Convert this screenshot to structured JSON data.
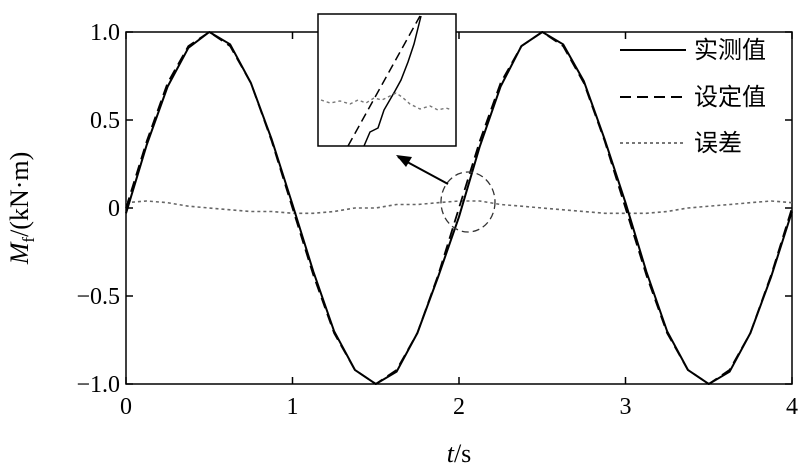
{
  "chart_data": {
    "type": "line",
    "xlabel_italic": "t",
    "xlabel_unit": "/s",
    "ylabel_italic": "M",
    "ylabel_subscript": "f",
    "ylabel_unit": "/(kN·m)",
    "xlim": [
      0,
      4
    ],
    "ylim": [
      -1.0,
      1.0
    ],
    "x_ticks": [
      0,
      1,
      2,
      3,
      4
    ],
    "x_tick_labels": [
      "0",
      "1",
      "2",
      "3",
      "4"
    ],
    "y_ticks": [
      -1.0,
      -0.5,
      0,
      0.5,
      1.0
    ],
    "y_tick_labels": [
      "−1.0",
      "−0.5",
      "0",
      "0.5",
      "1.0"
    ],
    "grid": false,
    "legend_position": "top-right",
    "series": [
      {
        "name": "实测值",
        "style": "solid",
        "color": "#000000",
        "x": [
          0,
          0.125,
          0.25,
          0.375,
          0.5,
          0.625,
          0.75,
          0.875,
          1.0,
          1.125,
          1.25,
          1.375,
          1.5,
          1.625,
          1.75,
          1.875,
          2.0,
          2.125,
          2.25,
          2.375,
          2.5,
          2.625,
          2.75,
          2.875,
          3.0,
          3.125,
          3.25,
          3.375,
          3.5,
          3.625,
          3.75,
          3.875,
          4.0
        ],
        "y": [
          -0.03,
          0.36,
          0.69,
          0.91,
          1.0,
          0.93,
          0.71,
          0.39,
          0.02,
          -0.36,
          -0.7,
          -0.92,
          -1.0,
          -0.93,
          -0.71,
          -0.39,
          -0.05,
          0.35,
          0.69,
          0.92,
          1.0,
          0.93,
          0.72,
          0.39,
          0.03,
          -0.36,
          -0.7,
          -0.92,
          -1.0,
          -0.93,
          -0.71,
          -0.39,
          -0.02
        ]
      },
      {
        "name": "设定值",
        "style": "dashed",
        "color": "#000000",
        "x": [
          0,
          0.125,
          0.25,
          0.375,
          0.5,
          0.625,
          0.75,
          0.875,
          1.0,
          1.125,
          1.25,
          1.375,
          1.5,
          1.625,
          1.75,
          1.875,
          2.0,
          2.125,
          2.25,
          2.375,
          2.5,
          2.625,
          2.75,
          2.875,
          3.0,
          3.125,
          3.25,
          3.375,
          3.5,
          3.625,
          3.75,
          3.875,
          4.0
        ],
        "y": [
          0,
          0.38,
          0.71,
          0.92,
          1.0,
          0.92,
          0.71,
          0.38,
          0,
          -0.38,
          -0.71,
          -0.92,
          -1.0,
          -0.92,
          -0.71,
          -0.38,
          0,
          0.38,
          0.71,
          0.92,
          1.0,
          0.92,
          0.71,
          0.38,
          0,
          -0.38,
          -0.71,
          -0.92,
          -1.0,
          -0.92,
          -0.71,
          -0.38,
          0
        ]
      },
      {
        "name": "误差",
        "style": "dotted",
        "color": "#666666",
        "x": [
          0,
          0.125,
          0.25,
          0.375,
          0.5,
          0.625,
          0.75,
          0.875,
          1.0,
          1.125,
          1.25,
          1.375,
          1.5,
          1.625,
          1.75,
          1.875,
          2.0,
          2.125,
          2.25,
          2.375,
          2.5,
          2.625,
          2.75,
          2.875,
          3.0,
          3.125,
          3.25,
          3.375,
          3.5,
          3.625,
          3.75,
          3.875,
          4.0
        ],
        "y": [
          0.03,
          0.04,
          0.03,
          0.01,
          0.0,
          -0.01,
          -0.02,
          -0.02,
          -0.03,
          -0.03,
          -0.02,
          0.0,
          0.0,
          0.02,
          0.02,
          0.03,
          0.04,
          0.04,
          0.02,
          0.01,
          0.0,
          -0.01,
          -0.02,
          -0.03,
          -0.03,
          -0.03,
          -0.02,
          0.0,
          0.01,
          0.02,
          0.03,
          0.04,
          0.03
        ]
      }
    ]
  }
}
